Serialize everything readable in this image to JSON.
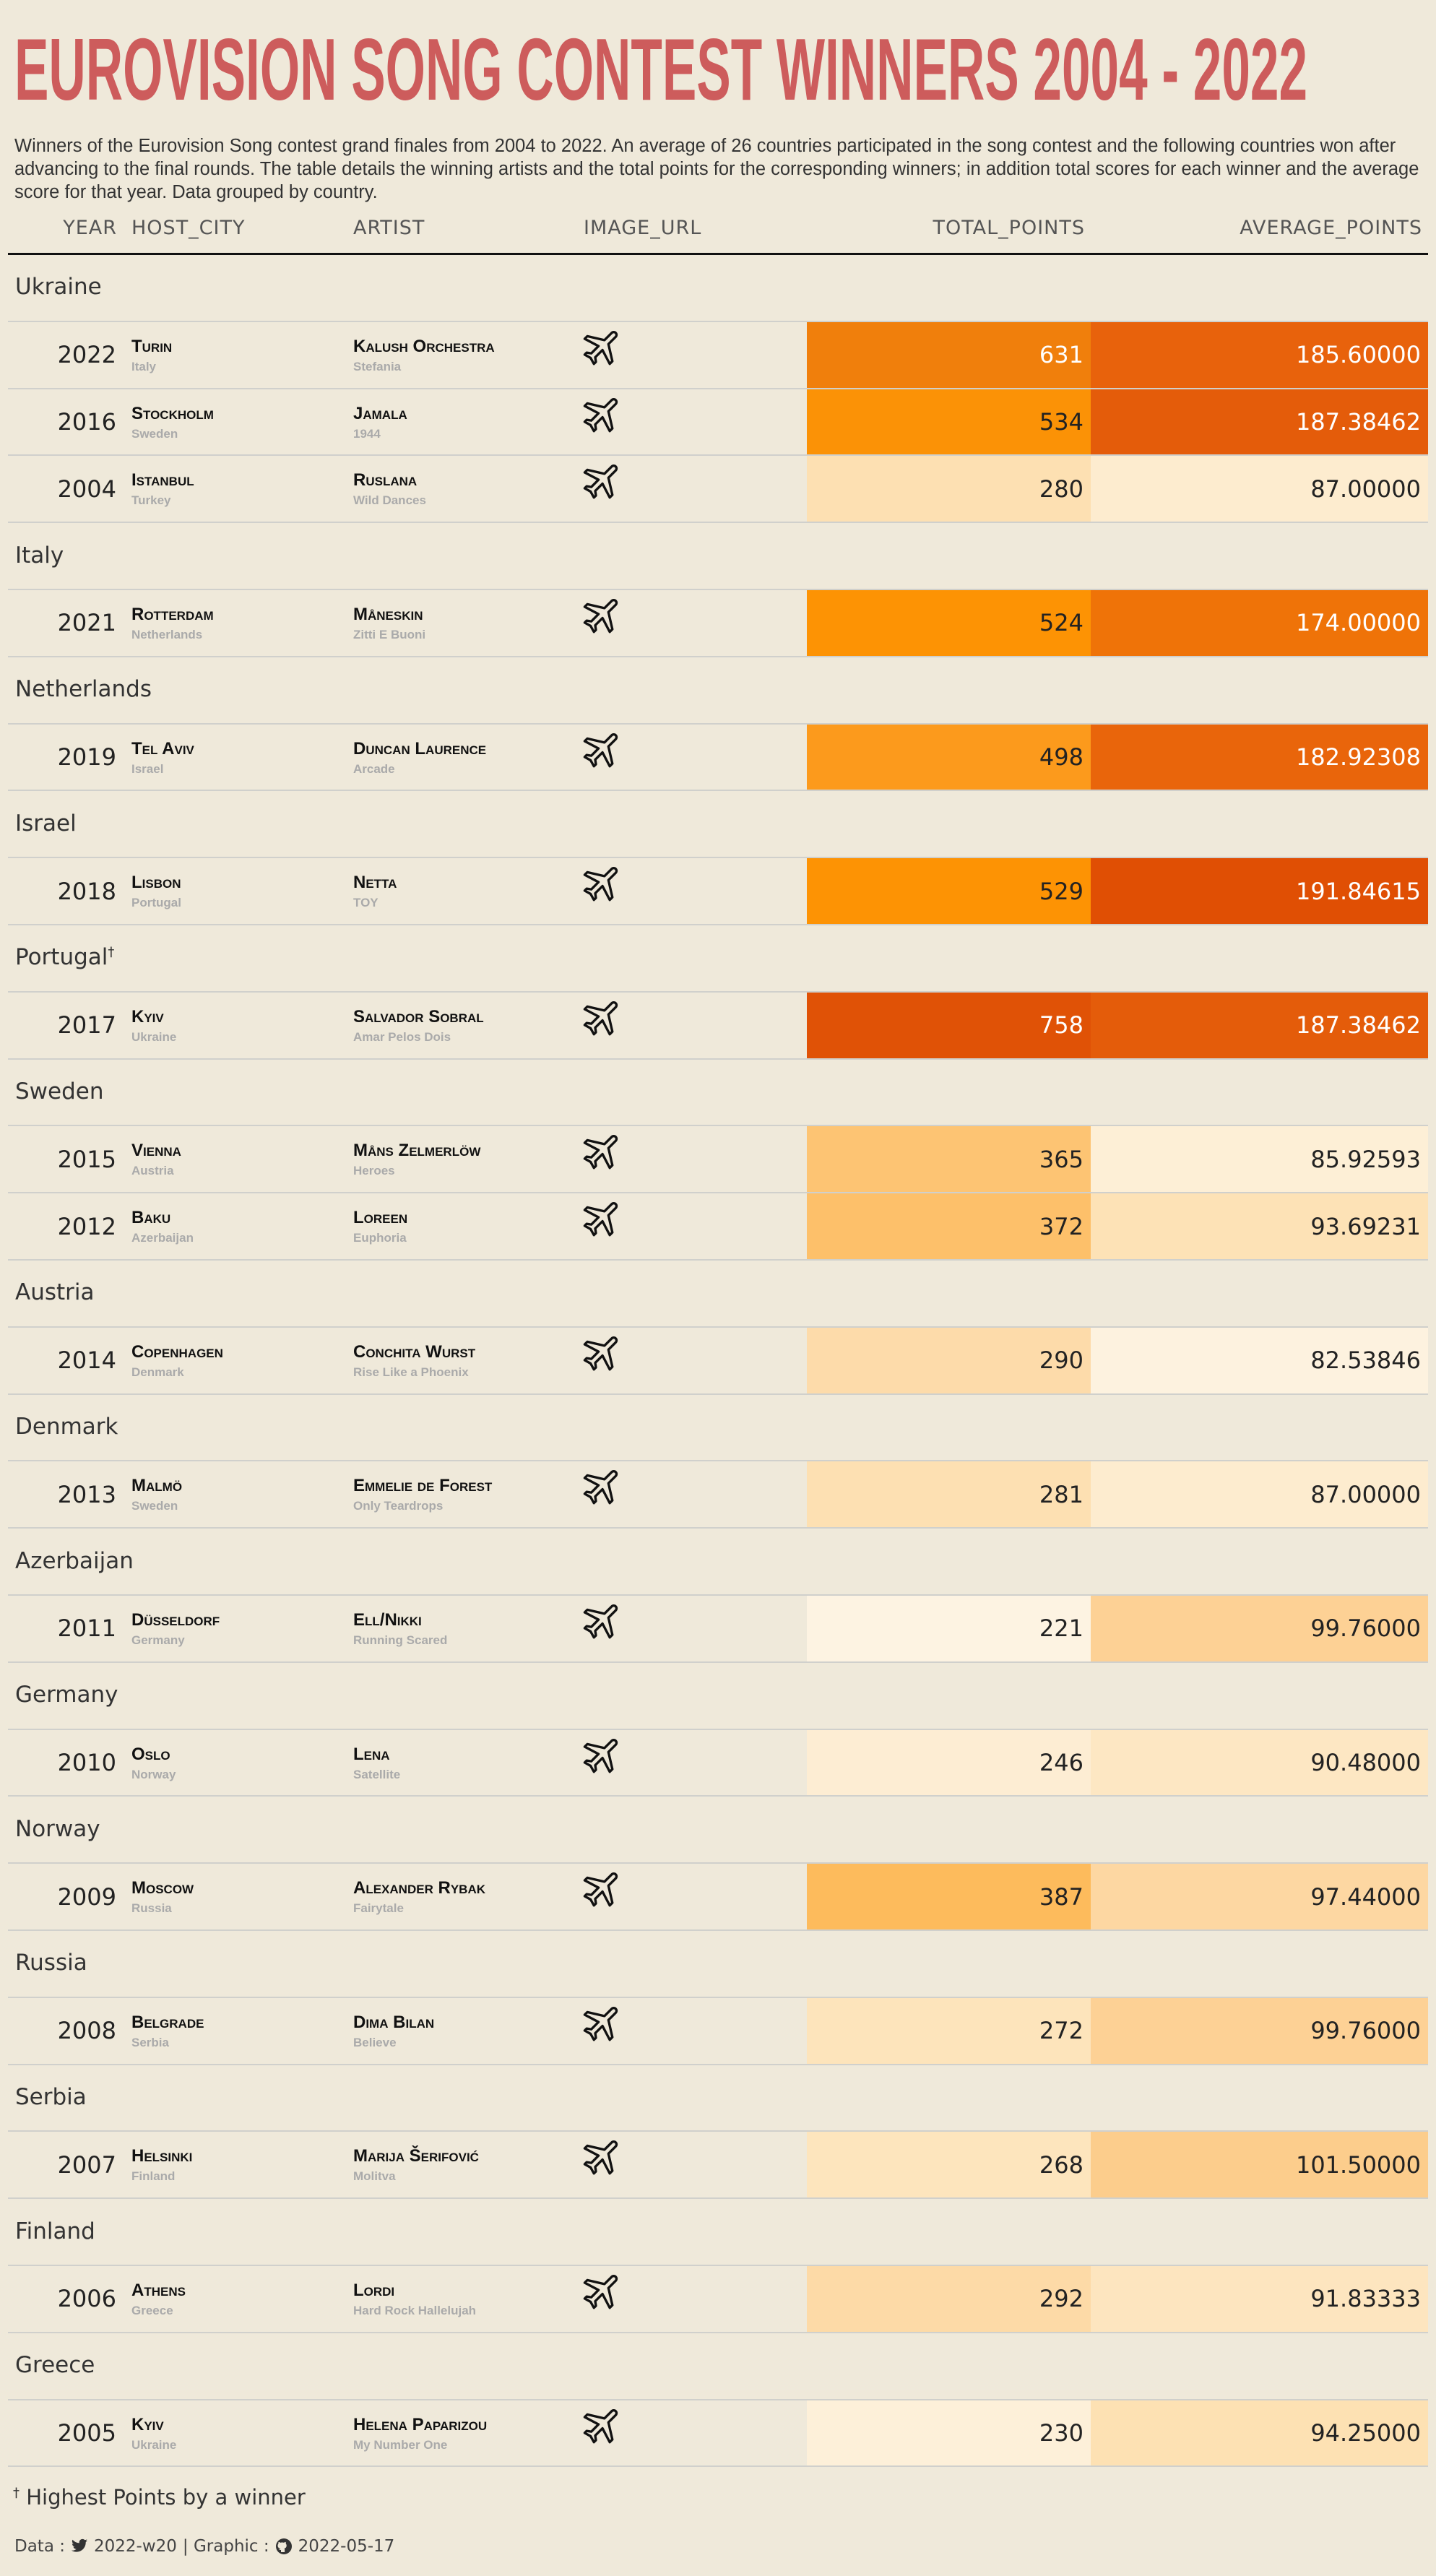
{
  "header": {
    "title": "EUROVISION SONG CONTEST WINNERS 2004 - 2022",
    "subtitle": "Winners of the Eurovision Song contest grand finales from 2004 to 2022. An average of 26 countries participated in the song contest and the following countries won after advancing to the final rounds. The table details the winning artists and the total points for the corresponding winners; in addition total scores for each winner and the average score for that year. Data grouped by country."
  },
  "table": {
    "columns": [
      "YEAR",
      "HOST_CITY",
      "ARTIST",
      "IMAGE_URL",
      "TOTAL_POINTS",
      "AVERAGE_POINTS"
    ],
    "groups": [
      {
        "name": "Ukraine",
        "rows": [
          {
            "year": 2022,
            "host_city": "Turin",
            "host_country": "Italy",
            "artist": "Kalush Orchestra",
            "song": "Stefania",
            "total_points": 631,
            "average_points": "185.60000",
            "total_color": "#f07f0c",
            "average_color": "#e8620c"
          },
          {
            "year": 2016,
            "host_city": "Stockholm",
            "host_country": "Sweden",
            "artist": "Jamala",
            "song": "1944",
            "total_points": 534,
            "average_points": "187.38462",
            "total_color": "#fb9206",
            "average_color": "#e45c0a"
          },
          {
            "year": 2004,
            "host_city": "Istanbul",
            "host_country": "Turkey",
            "artist": "Ruslana",
            "song": "Wild Dances",
            "total_points": 280,
            "average_points": "87.00000",
            "total_color": "#fde0b2",
            "average_color": "#fdeccf"
          }
        ]
      },
      {
        "name": "Italy",
        "rows": [
          {
            "year": 2021,
            "host_city": "Rotterdam",
            "host_country": "Netherlands",
            "artist": "Måneskin",
            "song": "Zitti E Buoni",
            "total_points": 524,
            "average_points": "174.00000",
            "total_color": "#fd9304",
            "average_color": "#ef7308"
          }
        ]
      },
      {
        "name": "Netherlands",
        "rows": [
          {
            "year": 2019,
            "host_city": "Tel Aviv",
            "host_country": "Israel",
            "artist": "Duncan Laurence",
            "song": "Arcade",
            "total_points": 498,
            "average_points": "182.92308",
            "total_color": "#fc9a1c",
            "average_color": "#e9650b"
          }
        ]
      },
      {
        "name": "Israel",
        "rows": [
          {
            "year": 2018,
            "host_city": "Lisbon",
            "host_country": "Portugal",
            "artist": "Netta",
            "song": "TOY",
            "total_points": 529,
            "average_points": "191.84615",
            "total_color": "#fd9304",
            "average_color": "#e04f04"
          }
        ]
      },
      {
        "name": "Portugal",
        "marked": true,
        "rows": [
          {
            "year": 2017,
            "host_city": "Kyiv",
            "host_country": "Ukraine",
            "artist": "Salvador Sobral",
            "song": "Amar Pelos Dois",
            "total_points": 758,
            "average_points": "187.38462",
            "total_color": "#e05206",
            "average_color": "#e45c0a"
          }
        ]
      },
      {
        "name": "Sweden",
        "rows": [
          {
            "year": 2015,
            "host_city": "Vienna",
            "host_country": "Austria",
            "artist": "Måns Zelmerlöw",
            "song": "Heroes",
            "total_points": 365,
            "average_points": "85.92593",
            "total_color": "#fdc473",
            "average_color": "#fdefd6"
          },
          {
            "year": 2012,
            "host_city": "Baku",
            "host_country": "Azerbaijan",
            "artist": "Loreen",
            "song": "Euphoria",
            "total_points": 372,
            "average_points": "93.69231",
            "total_color": "#fdc06a",
            "average_color": "#fde2b6"
          }
        ]
      },
      {
        "name": "Austria",
        "rows": [
          {
            "year": 2014,
            "host_city": "Copenhagen",
            "host_country": "Denmark",
            "artist": "Conchita Wurst",
            "song": "Rise Like a Phoenix",
            "total_points": 290,
            "average_points": "82.53846",
            "total_color": "#fddbaa",
            "average_color": "#fdf2df"
          }
        ]
      },
      {
        "name": "Denmark",
        "rows": [
          {
            "year": 2013,
            "host_city": "Malmö",
            "host_country": "Sweden",
            "artist": "Emmelie de Forest",
            "song": "Only Teardrops",
            "total_points": 281,
            "average_points": "87.00000",
            "total_color": "#fde0b2",
            "average_color": "#fdeccf"
          }
        ]
      },
      {
        "name": "Azerbaijan",
        "rows": [
          {
            "year": 2011,
            "host_city": "Düsseldorf",
            "host_country": "Germany",
            "artist": "Ell/Nikki",
            "song": "Running Scared",
            "total_points": 221,
            "average_points": "99.76000",
            "total_color": "#fdf3e2",
            "average_color": "#fdd195"
          }
        ]
      },
      {
        "name": "Germany",
        "rows": [
          {
            "year": 2010,
            "host_city": "Oslo",
            "host_country": "Norway",
            "artist": "Lena",
            "song": "Satellite",
            "total_points": 246,
            "average_points": "90.48000",
            "total_color": "#fdedd3",
            "average_color": "#fde7c3"
          }
        ]
      },
      {
        "name": "Norway",
        "rows": [
          {
            "year": 2009,
            "host_city": "Moscow",
            "host_country": "Russia",
            "artist": "Alexander Rybak",
            "song": "Fairytale",
            "total_points": 387,
            "average_points": "97.44000",
            "total_color": "#fdbb5c",
            "average_color": "#fdd7a2"
          }
        ]
      },
      {
        "name": "Russia",
        "rows": [
          {
            "year": 2008,
            "host_city": "Belgrade",
            "host_country": "Serbia",
            "artist": "Dima Bilan",
            "song": "Believe",
            "total_points": 272,
            "average_points": "99.76000",
            "total_color": "#fde4bb",
            "average_color": "#fdd195"
          }
        ]
      },
      {
        "name": "Serbia",
        "rows": [
          {
            "year": 2007,
            "host_city": "Helsinki",
            "host_country": "Finland",
            "artist": "Marija Šerifović",
            "song": "Molitva",
            "total_points": 268,
            "average_points": "101.50000",
            "total_color": "#fde5bd",
            "average_color": "#fccd8c"
          }
        ]
      },
      {
        "name": "Finland",
        "rows": [
          {
            "year": 2006,
            "host_city": "Athens",
            "host_country": "Greece",
            "artist": "Lordi",
            "song": "Hard Rock Hallelujah",
            "total_points": 292,
            "average_points": "91.83333",
            "total_color": "#fddaa7",
            "average_color": "#fde5bf"
          }
        ]
      },
      {
        "name": "Greece",
        "rows": [
          {
            "year": 2005,
            "host_city": "Kyiv",
            "host_country": "Ukraine",
            "artist": "Helena Paparizou",
            "song": "My Number One",
            "total_points": 230,
            "average_points": "94.25000",
            "total_color": "#fdf0d9",
            "average_color": "#fde1b3"
          }
        ]
      }
    ]
  },
  "footnote": {
    "mark": "†",
    "text": "Highest Points by a winner"
  },
  "source": {
    "data_label": "Data :",
    "data_value": "2022-w20",
    "graphic_label": "| Graphic :",
    "graphic_value": "2022-05-17"
  }
}
